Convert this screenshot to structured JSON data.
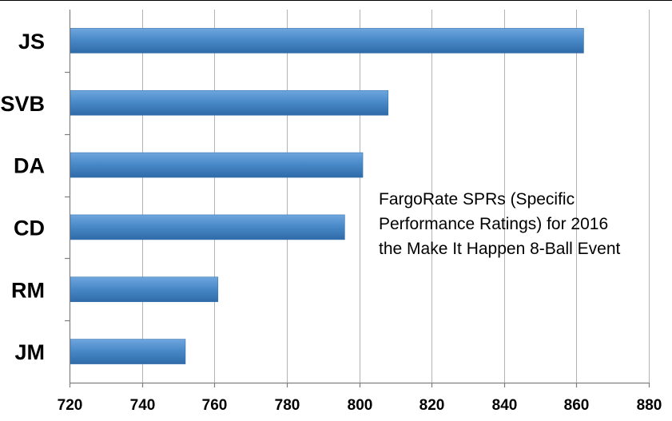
{
  "chart_data": {
    "type": "bar",
    "orientation": "horizontal",
    "categories": [
      "JS",
      "SVB",
      "DA",
      "CD",
      "RM",
      "JM"
    ],
    "values": [
      862,
      808,
      801,
      796,
      761,
      752
    ],
    "xlim": [
      720,
      880
    ],
    "xticks": [
      720,
      740,
      760,
      780,
      800,
      820,
      840,
      860,
      880
    ],
    "title": "",
    "xlabel": "",
    "ylabel": "",
    "grid": true,
    "bar_color": "#4a8ac9",
    "annotation": [
      "FargoRate SPRs (Specific",
      "Performance Ratings) for 2016",
      "the Make It Happen 8-Ball Event"
    ]
  }
}
